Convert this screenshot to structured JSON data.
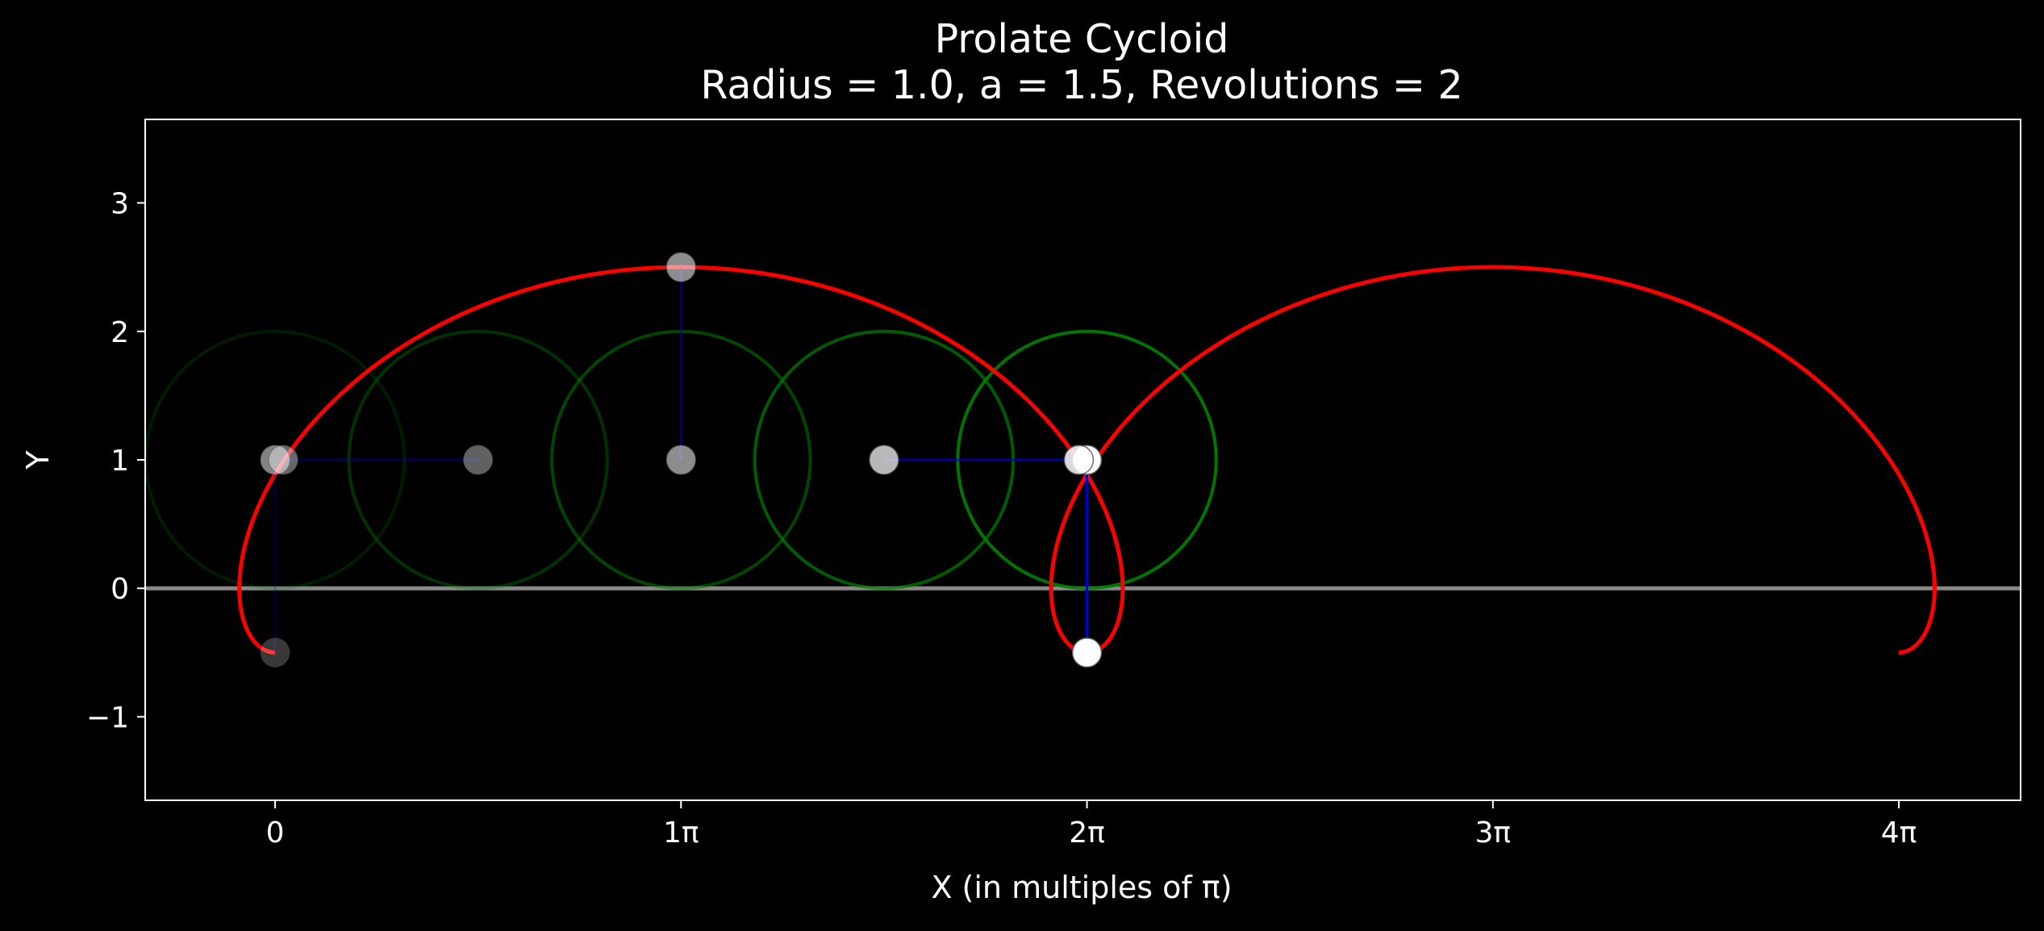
{
  "chart_data": {
    "type": "line",
    "title": "Prolate Cycloid",
    "subtitle": "Radius = 1.0, a = 1.5, Revolutions = 2",
    "xlabel": "X (in multiples of π)",
    "ylabel": "Y",
    "x_unit": "π",
    "xlim": [
      -0.32,
      4.3
    ],
    "ylim": [
      -1.65,
      3.65
    ],
    "xticks": [
      {
        "value": 0,
        "label": "0"
      },
      {
        "value": 1,
        "label": "1π"
      },
      {
        "value": 2,
        "label": "2π"
      },
      {
        "value": 3,
        "label": "3π"
      },
      {
        "value": 4,
        "label": "4π"
      }
    ],
    "yticks": [
      {
        "value": -1,
        "label": "−1"
      },
      {
        "value": 0,
        "label": "0"
      },
      {
        "value": 1,
        "label": "1"
      },
      {
        "value": 2,
        "label": "2"
      },
      {
        "value": 3,
        "label": "3"
      }
    ],
    "grid": false,
    "legend": "none",
    "curve": {
      "name": "",
      "radius": 1.0,
      "a": 1.5,
      "revolutions": 2,
      "color": "#ff0000"
    },
    "ground_line": {
      "y": 0,
      "color": "#888888"
    },
    "rolling_circles": [
      {
        "center_x": 0.0,
        "center_y": 1,
        "radius": 1,
        "opacity": 0.22
      },
      {
        "center_x": 0.5,
        "center_y": 1,
        "radius": 1,
        "opacity": 0.38
      },
      {
        "center_x": 1.0,
        "center_y": 1,
        "radius": 1,
        "opacity": 0.55
      },
      {
        "center_x": 1.5,
        "center_y": 1,
        "radius": 1,
        "opacity": 0.72
      },
      {
        "center_x": 2.0,
        "center_y": 1,
        "radius": 1,
        "opacity": 0.92
      }
    ],
    "snapshots": [
      {
        "center_x": 0.0,
        "tracer_x": 0.0,
        "tracer_y": -0.5,
        "opacity": 0.22
      },
      {
        "center_x": 0.5,
        "tracer_x": 0.0,
        "tracer_y": 1.0,
        "opacity": 0.38
      },
      {
        "center_x": 1.0,
        "tracer_x": 1.0,
        "tracer_y": 2.5,
        "opacity": 0.55
      },
      {
        "center_x": 1.5,
        "tracer_x": 2.0,
        "tracer_y": 1.0,
        "opacity": 0.72
      },
      {
        "center_x": 2.0,
        "tracer_x": 2.0,
        "tracer_y": -0.5,
        "opacity": 1.0
      }
    ],
    "extra_markers": [
      {
        "x": 0.02,
        "y": 1.0,
        "opacity": 0.4
      },
      {
        "x": 1.98,
        "y": 1.0,
        "opacity": 0.85
      }
    ],
    "colors": {
      "background": "#000000",
      "curve": "#ff0000",
      "circle": "#008000",
      "arm": "#0000cd",
      "marker": "#ffffff",
      "axis": "#ffffff"
    }
  }
}
